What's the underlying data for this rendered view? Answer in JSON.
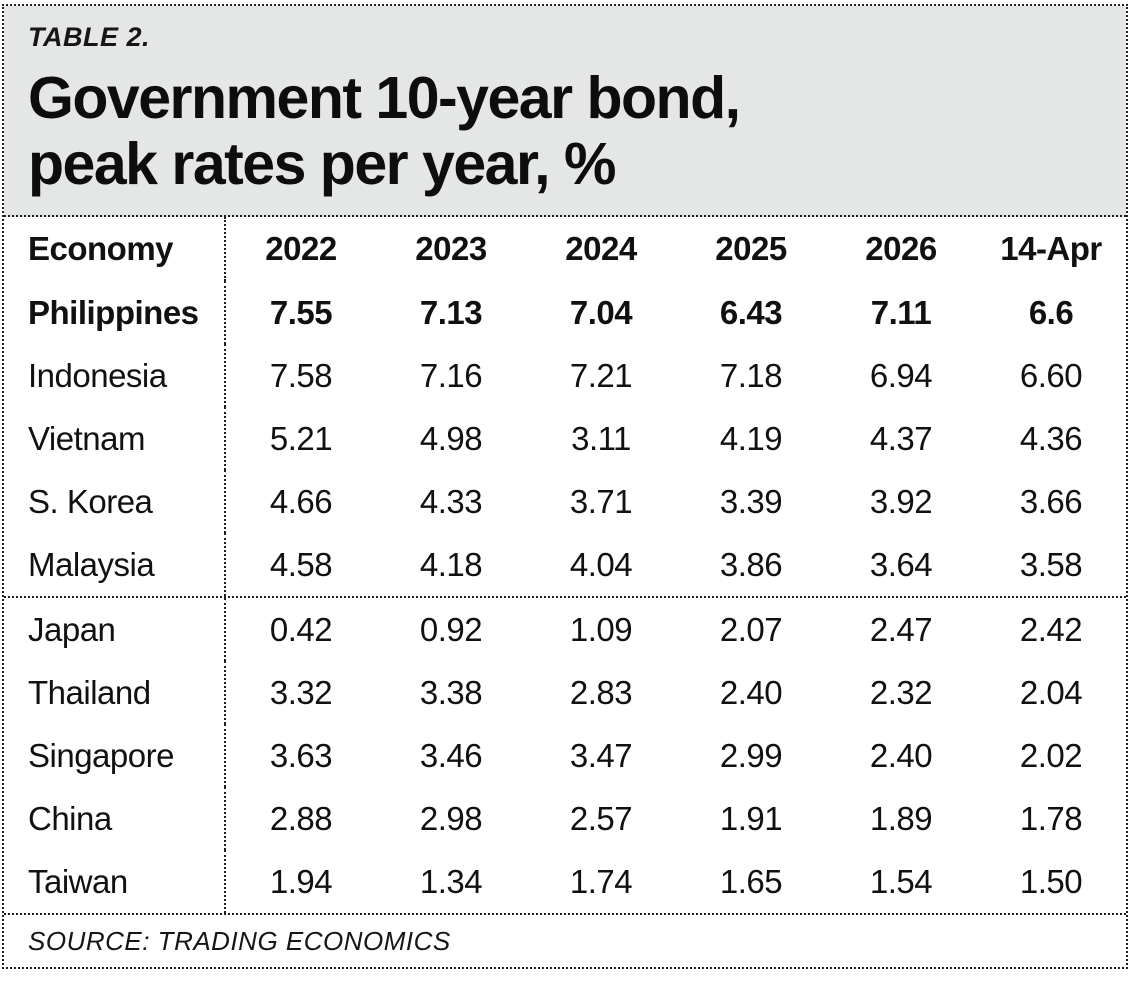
{
  "header": {
    "table_label": "TABLE 2.",
    "title_line1": "Government 10-year bond,",
    "title_line2": "peak rates per year, %"
  },
  "colors": {
    "header_bg": "#e5e6e6",
    "border": "#1f1f1f",
    "text": "#111111"
  },
  "table": {
    "columns": [
      "Economy",
      "2022",
      "2023",
      "2024",
      "2025",
      "2026",
      "14-Apr"
    ],
    "rows": [
      {
        "economy": "Philippines",
        "values": [
          "7.55",
          "7.13",
          "7.04",
          "6.43",
          "7.11",
          "6.6"
        ]
      },
      {
        "economy": "Indonesia",
        "values": [
          "7.58",
          "7.16",
          "7.21",
          "7.18",
          "6.94",
          "6.60"
        ]
      },
      {
        "economy": "Vietnam",
        "values": [
          "5.21",
          "4.98",
          "3.11",
          "4.19",
          "4.37",
          "4.36"
        ]
      },
      {
        "economy": "S. Korea",
        "values": [
          "4.66",
          "4.33",
          "3.71",
          "3.39",
          "3.92",
          "3.66"
        ]
      },
      {
        "economy": "Malaysia",
        "values": [
          "4.58",
          "4.18",
          "4.04",
          "3.86",
          "3.64",
          "3.58"
        ]
      },
      {
        "economy": "Japan",
        "values": [
          "0.42",
          "0.92",
          "1.09",
          "2.07",
          "2.47",
          "2.42"
        ]
      },
      {
        "economy": "Thailand",
        "values": [
          "3.32",
          "3.38",
          "2.83",
          "2.40",
          "2.32",
          "2.04"
        ]
      },
      {
        "economy": "Singapore",
        "values": [
          "3.63",
          "3.46",
          "3.47",
          "2.99",
          "2.40",
          "2.02"
        ]
      },
      {
        "economy": "China",
        "values": [
          "2.88",
          "2.98",
          "2.57",
          "1.91",
          "1.89",
          "1.78"
        ]
      },
      {
        "economy": "Taiwan",
        "values": [
          "1.94",
          "1.34",
          "1.74",
          "1.65",
          "1.54",
          "1.50"
        ]
      }
    ]
  },
  "footer": {
    "source": "SOURCE: TRADING ECONOMICS"
  },
  "chart_data": {
    "type": "table",
    "title": "Government 10-year bond, peak rates per year, %",
    "table_label": "TABLE 2.",
    "columns": [
      "Economy",
      "2022",
      "2023",
      "2024",
      "2025",
      "2026",
      "14-Apr"
    ],
    "rows": [
      {
        "economy": "Philippines",
        "values": [
          7.55,
          7.13,
          7.04,
          6.43,
          7.11,
          6.6
        ],
        "emphasized": true
      },
      {
        "economy": "Indonesia",
        "values": [
          7.58,
          7.16,
          7.21,
          7.18,
          6.94,
          6.6
        ],
        "emphasized": false
      },
      {
        "economy": "Vietnam",
        "values": [
          5.21,
          4.98,
          3.11,
          4.19,
          4.37,
          4.36
        ],
        "emphasized": false
      },
      {
        "economy": "S. Korea",
        "values": [
          4.66,
          4.33,
          3.71,
          3.39,
          3.92,
          3.66
        ],
        "emphasized": false
      },
      {
        "economy": "Malaysia",
        "values": [
          4.58,
          4.18,
          4.04,
          3.86,
          3.64,
          3.58
        ],
        "emphasized": false
      },
      {
        "economy": "Japan",
        "values": [
          0.42,
          0.92,
          1.09,
          2.07,
          2.47,
          2.42
        ],
        "emphasized": false
      },
      {
        "economy": "Thailand",
        "values": [
          3.32,
          3.38,
          2.83,
          2.4,
          2.32,
          2.04
        ],
        "emphasized": false
      },
      {
        "economy": "Singapore",
        "values": [
          3.63,
          3.46,
          3.47,
          2.99,
          2.4,
          2.02
        ],
        "emphasized": false
      },
      {
        "economy": "China",
        "values": [
          2.88,
          2.98,
          2.57,
          1.91,
          1.89,
          1.78
        ],
        "emphasized": false
      },
      {
        "economy": "Taiwan",
        "values": [
          1.94,
          1.34,
          1.74,
          1.65,
          1.54,
          1.5
        ],
        "emphasized": false
      }
    ],
    "row_groups": [
      [
        "Philippines",
        "Indonesia",
        "Vietnam",
        "S. Korea",
        "Malaysia"
      ],
      [
        "Japan",
        "Thailand",
        "Singapore",
        "China",
        "Taiwan"
      ]
    ],
    "source": "TRADING ECONOMICS"
  }
}
